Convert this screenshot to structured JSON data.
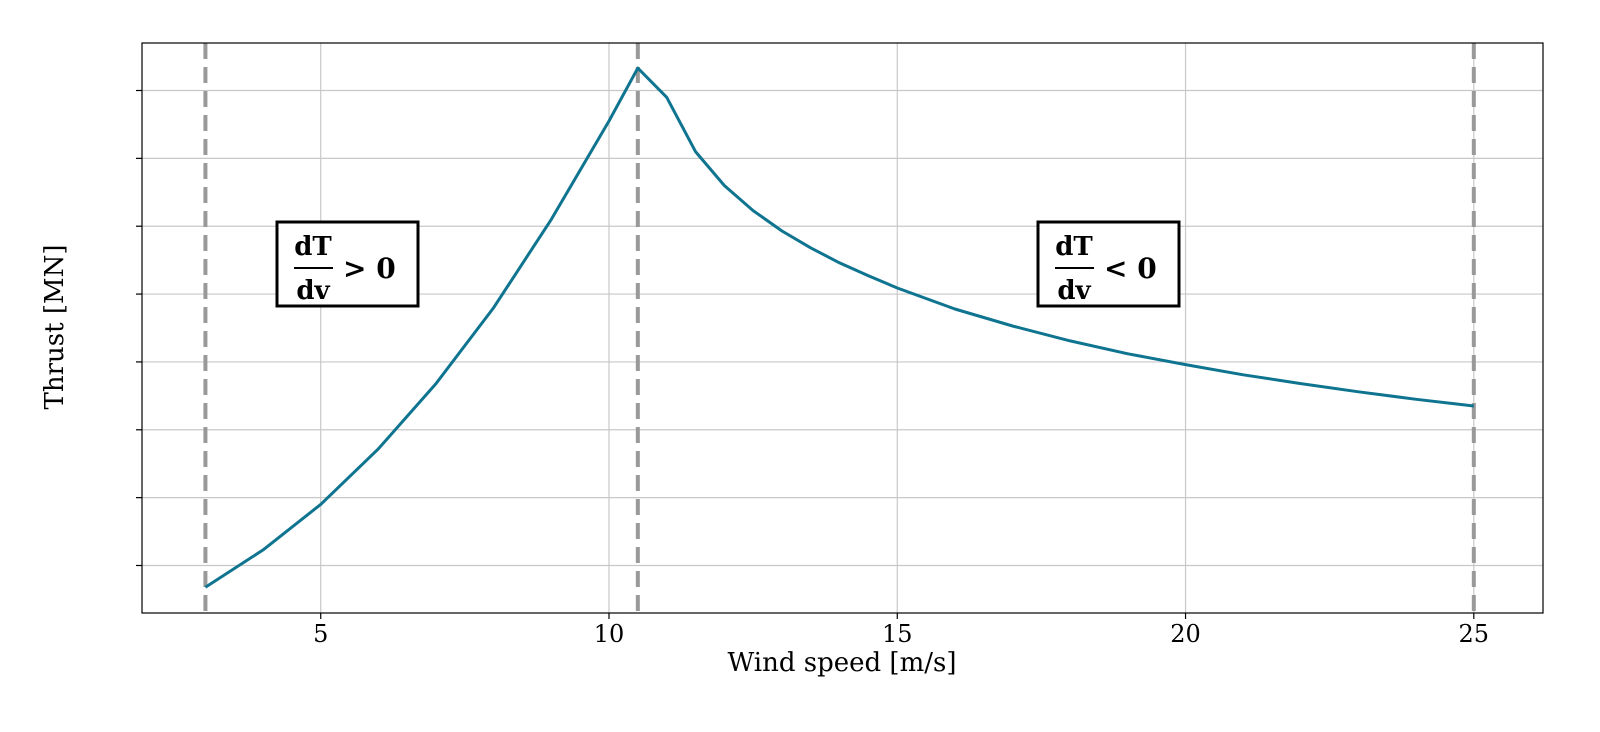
{
  "chart_data": {
    "type": "line",
    "title": "",
    "xlabel": "Wind speed [m/s]",
    "ylabel": "Thrust [MN]",
    "xlim": [
      1.9,
      26.2
    ],
    "ylim": [
      0.0,
      8.4
    ],
    "x_ticks": [
      5,
      10,
      15,
      20,
      25
    ],
    "x_tick_labels": [
      "5",
      "10",
      "15",
      "20",
      "25"
    ],
    "y_ticks": [
      0.7,
      1.7,
      2.7,
      3.7,
      4.7,
      5.7,
      6.7,
      7.7
    ],
    "y_tick_labels_shown": false,
    "grid": true,
    "legend": "none",
    "series": [
      {
        "color": "#0e7490",
        "x": [
          3.0,
          4.0,
          5.0,
          6.0,
          7.0,
          8.0,
          9.0,
          10.0,
          10.5,
          11.0,
          11.5,
          12.0,
          12.5,
          13.0,
          13.5,
          14.0,
          14.5,
          15.0,
          16.0,
          17.0,
          18.0,
          19.0,
          20.0,
          21.0,
          22.0,
          23.0,
          24.0,
          25.0
        ],
        "y": [
          0.38,
          0.93,
          1.6,
          2.42,
          3.38,
          4.5,
          5.8,
          7.25,
          8.03,
          7.6,
          6.8,
          6.3,
          5.93,
          5.63,
          5.38,
          5.16,
          4.97,
          4.79,
          4.48,
          4.23,
          4.01,
          3.82,
          3.66,
          3.51,
          3.38,
          3.26,
          3.15,
          3.05
        ]
      }
    ],
    "vertical_lines": [
      {
        "x": 3.0,
        "style": "dashed",
        "color": "#999999"
      },
      {
        "x": 10.5,
        "style": "dashed",
        "color": "#999999"
      },
      {
        "x": 25.0,
        "style": "dashed",
        "color": "#999999"
      }
    ],
    "annotations": [
      {
        "numerator": "dT",
        "denominator": "dv",
        "relation": "> 0"
      },
      {
        "numerator": "dT",
        "denominator": "dv",
        "relation": "< 0"
      }
    ]
  }
}
